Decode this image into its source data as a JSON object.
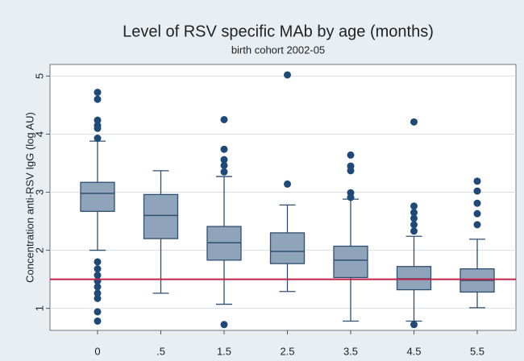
{
  "chart_data": {
    "type": "box",
    "title": "Level of RSV specific MAb by age (months)",
    "subtitle": "birth cohort 2002-05",
    "y_label": "Concentration anti-RSV IgG (log AU)",
    "categories": [
      "0",
      ".5",
      "1.5",
      "2.5",
      "3.5",
      "4.5",
      "5.5"
    ],
    "whisker_low": [
      2.0,
      1.26,
      1.07,
      1.29,
      0.78,
      0.78,
      1.01
    ],
    "q1": [
      2.67,
      2.2,
      1.83,
      1.77,
      1.53,
      1.32,
      1.28
    ],
    "median": [
      2.98,
      2.6,
      2.13,
      1.98,
      1.83,
      1.51,
      1.48
    ],
    "q3": [
      3.17,
      2.96,
      2.41,
      2.3,
      2.07,
      1.72,
      1.68
    ],
    "whisker_high": [
      3.88,
      3.37,
      3.27,
      2.78,
      2.88,
      2.24,
      2.19
    ],
    "outliers": [
      [
        4.72,
        4.6,
        4.24,
        4.15,
        4.1,
        3.93,
        1.8,
        1.68,
        1.57,
        1.47,
        1.37,
        1.26,
        1.17,
        0.94,
        0.78
      ],
      [],
      [
        4.25,
        3.74,
        3.56,
        3.46,
        3.35,
        0.72
      ],
      [
        5.02,
        3.14
      ],
      [
        3.64,
        3.45,
        3.37,
        2.99,
        2.91
      ],
      [
        4.21,
        2.76,
        2.65,
        2.55,
        2.44,
        2.33,
        0.72
      ],
      [
        3.19,
        3.02,
        2.81,
        2.63,
        2.44
      ]
    ],
    "reference_line": 1.5,
    "reference_color": "#c0244a",
    "box_color": "#8fa4ba",
    "edge_color": "#2f4f70",
    "outlier_color": "#1f4a78",
    "ylim": [
      0.62,
      5.2
    ],
    "yticks": [
      1,
      2,
      3,
      4,
      5
    ],
    "grid": true
  }
}
